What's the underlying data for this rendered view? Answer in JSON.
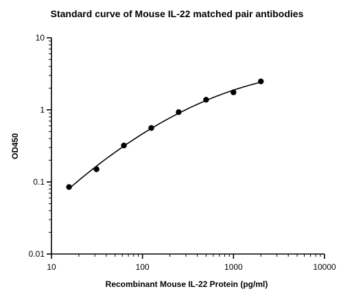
{
  "chart_data": {
    "type": "scatter",
    "title": "Standard curve of Mouse IL-22 matched pair antibodies",
    "xlabel": "Recombinant Mouse IL-22 Protein (pg/ml)",
    "ylabel": "OD450",
    "x_scale": "log",
    "y_scale": "log",
    "xlim": [
      10,
      10000
    ],
    "ylim": [
      0.01,
      10
    ],
    "x_ticks": [
      "10",
      "100",
      "1000",
      "10000"
    ],
    "y_ticks": [
      "0.01",
      "0.1",
      "1",
      "10"
    ],
    "grid": false,
    "series": [
      {
        "x": [
          15.6,
          31.25,
          62.5,
          125,
          250,
          500,
          1000,
          2000
        ],
        "y": [
          0.085,
          0.15,
          0.32,
          0.56,
          0.93,
          1.38,
          1.75,
          2.48
        ]
      }
    ],
    "fit_curve": true,
    "colors": {
      "marker": "#000000",
      "line": "#000000"
    }
  }
}
